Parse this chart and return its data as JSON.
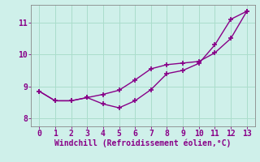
{
  "title": "",
  "xlabel": "Windchill (Refroidissement éolien,°C)",
  "ylabel": "",
  "background_color": "#cff0ea",
  "line_color": "#880088",
  "grid_color": "#aaddcc",
  "xlim": [
    -0.5,
    13.5
  ],
  "ylim": [
    7.75,
    11.55
  ],
  "yticks": [
    8,
    9,
    10,
    11
  ],
  "xticks": [
    0,
    1,
    2,
    3,
    4,
    5,
    6,
    7,
    8,
    9,
    10,
    11,
    12,
    13
  ],
  "line1_x": [
    0,
    1,
    2,
    3,
    4,
    5,
    6,
    7,
    8,
    9,
    10,
    11,
    12,
    13
  ],
  "line1_y": [
    8.85,
    8.55,
    8.55,
    8.65,
    8.45,
    8.33,
    8.55,
    8.9,
    9.4,
    9.5,
    9.72,
    10.3,
    11.1,
    11.35
  ],
  "line2_x": [
    0,
    1,
    2,
    3,
    4,
    5,
    6,
    7,
    8,
    9,
    10,
    11,
    12,
    13
  ],
  "line2_y": [
    8.85,
    8.55,
    8.55,
    8.65,
    8.75,
    8.88,
    9.2,
    9.55,
    9.68,
    9.73,
    9.78,
    10.05,
    10.5,
    11.35
  ],
  "marker": "+",
  "markersize": 4,
  "linewidth": 1.0,
  "xlabel_fontsize": 7,
  "tick_fontsize": 7,
  "tick_color": "#880088",
  "spine_color": "#888888"
}
